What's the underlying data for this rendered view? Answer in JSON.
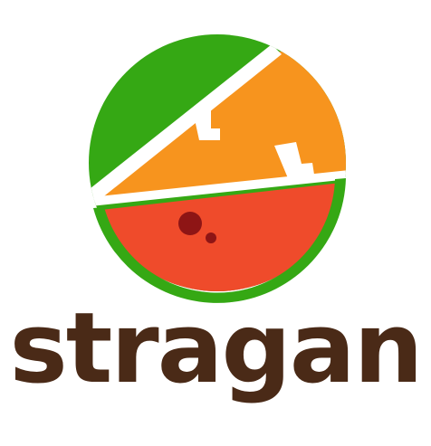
{
  "brand": {
    "name": "stragan",
    "colors": {
      "green": "#35A814",
      "orange": "#F7941E",
      "red": "#EF4B2B",
      "seed": "#8E1515",
      "divider": "#FFFFFF",
      "text": "#4A2A17",
      "background": "#FFFFFF"
    }
  },
  "logo": {
    "mark_icon": "watermelon-citrus-circle-icon"
  }
}
